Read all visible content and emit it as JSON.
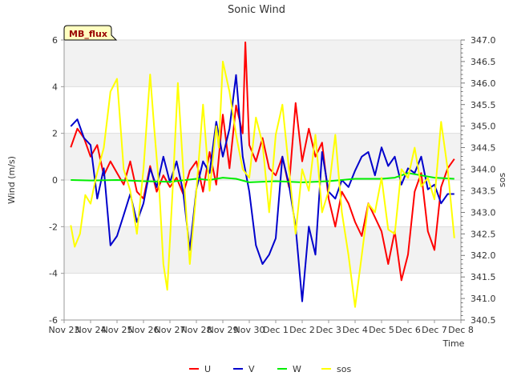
{
  "chart_data": {
    "type": "line",
    "title": "Sonic Wind",
    "badge": "MB_flux",
    "xlabel": "Time",
    "ylabel": "Wind (m/s)",
    "y2label": "sos",
    "xlim": [
      0,
      15
    ],
    "ylim": [
      -6,
      6
    ],
    "y2lim": [
      340.5,
      347.0
    ],
    "x_ticks": [
      {
        "value": 0,
        "label": "Nov 23"
      },
      {
        "value": 1,
        "label": "Nov 24"
      },
      {
        "value": 2,
        "label": "Nov 25"
      },
      {
        "value": 3,
        "label": "Nov 26"
      },
      {
        "value": 4,
        "label": "Nov 27"
      },
      {
        "value": 5,
        "label": "Nov 28"
      },
      {
        "value": 6,
        "label": "Nov 29"
      },
      {
        "value": 7,
        "label": "Nov 30"
      },
      {
        "value": 8,
        "label": "Dec 1"
      },
      {
        "value": 9,
        "label": "Dec 2"
      },
      {
        "value": 10,
        "label": "Dec 3"
      },
      {
        "value": 11,
        "label": "Dec 4"
      },
      {
        "value": 12,
        "label": "Dec 5"
      },
      {
        "value": 13,
        "label": "Dec 6"
      },
      {
        "value": 14,
        "label": "Dec 7"
      },
      {
        "value": 15,
        "label": "Dec 8"
      }
    ],
    "y_ticks": [
      -6,
      -4,
      -2,
      0,
      2,
      4,
      6
    ],
    "y2_ticks": [
      "340.5",
      "341.0",
      "341.5",
      "342.0",
      "342.5",
      "343.0",
      "343.5",
      "344.0",
      "344.5",
      "345.0",
      "345.5",
      "346.0",
      "346.5",
      "347.0"
    ],
    "legend": [
      "U",
      "V",
      "W",
      "sos"
    ],
    "series": [
      {
        "name": "U",
        "color": "#ff0000",
        "axis": "left",
        "x": [
          0.25,
          0.5,
          0.75,
          1.0,
          1.25,
          1.5,
          1.75,
          2.0,
          2.25,
          2.5,
          2.75,
          3.0,
          3.25,
          3.5,
          3.75,
          4.0,
          4.25,
          4.5,
          4.75,
          5.0,
          5.25,
          5.5,
          5.75,
          6.0,
          6.25,
          6.5,
          6.75,
          6.85,
          7.0,
          7.25,
          7.5,
          7.75,
          8.0,
          8.25,
          8.5,
          8.75,
          9.0,
          9.25,
          9.5,
          9.75,
          10.0,
          10.25,
          10.5,
          10.75,
          11.0,
          11.25,
          11.5,
          11.75,
          12.0,
          12.25,
          12.5,
          12.75,
          13.0,
          13.25,
          13.5,
          13.75,
          14.0,
          14.25,
          14.5,
          14.75
        ],
        "values": [
          1.4,
          2.2,
          1.8,
          1.0,
          1.5,
          0.2,
          0.8,
          0.3,
          -0.2,
          0.8,
          -0.5,
          -0.8,
          0.6,
          -0.5,
          0.2,
          -0.3,
          0.1,
          -0.6,
          0.4,
          0.8,
          -0.5,
          1.2,
          -0.2,
          2.8,
          0.5,
          3.2,
          2.0,
          5.9,
          1.5,
          0.8,
          1.8,
          0.5,
          0.2,
          1.0,
          -0.3,
          3.3,
          0.8,
          2.2,
          1.0,
          1.6,
          -0.8,
          -2.0,
          -0.5,
          -1.0,
          -1.8,
          -2.4,
          -1.0,
          -1.6,
          -2.2,
          -3.6,
          -2.2,
          -4.3,
          -3.2,
          -0.5,
          0.3,
          -2.2,
          -3.0,
          -0.3,
          0.5,
          0.9
        ]
      },
      {
        "name": "V",
        "color": "#0000cc",
        "axis": "left",
        "x": [
          0.25,
          0.5,
          0.75,
          1.0,
          1.25,
          1.5,
          1.75,
          2.0,
          2.25,
          2.5,
          2.75,
          3.0,
          3.25,
          3.5,
          3.75,
          4.0,
          4.25,
          4.5,
          4.75,
          5.0,
          5.25,
          5.5,
          5.75,
          6.0,
          6.25,
          6.5,
          6.75,
          7.0,
          7.25,
          7.5,
          7.75,
          8.0,
          8.25,
          8.5,
          8.75,
          9.0,
          9.25,
          9.5,
          9.75,
          10.0,
          10.25,
          10.5,
          10.75,
          11.0,
          11.25,
          11.5,
          11.75,
          12.0,
          12.25,
          12.5,
          12.75,
          13.0,
          13.25,
          13.5,
          13.75,
          14.0,
          14.25,
          14.5,
          14.75
        ],
        "values": [
          2.3,
          2.6,
          1.8,
          1.5,
          -0.8,
          0.5,
          -2.8,
          -2.4,
          -1.5,
          -0.6,
          -1.8,
          -1.0,
          0.5,
          -0.3,
          1.0,
          -0.1,
          0.8,
          -0.5,
          -3.0,
          -0.4,
          0.8,
          0.3,
          2.5,
          1.0,
          2.2,
          4.5,
          1.0,
          -0.5,
          -2.8,
          -3.6,
          -3.2,
          -2.5,
          1.0,
          -0.2,
          -2.0,
          -5.2,
          -2.0,
          -3.2,
          1.2,
          -0.5,
          -0.8,
          0.0,
          -0.3,
          0.4,
          1.0,
          1.2,
          0.2,
          1.4,
          0.6,
          1.0,
          -0.2,
          0.5,
          0.3,
          1.0,
          -0.4,
          -0.2,
          -1.0,
          -0.6,
          -0.6
        ]
      },
      {
        "name": "W",
        "color": "#00ee00",
        "axis": "left",
        "x": [
          0.25,
          1.0,
          2.0,
          3.0,
          4.0,
          5.0,
          5.5,
          6.0,
          6.5,
          7.0,
          8.0,
          9.0,
          10.0,
          11.0,
          12.0,
          12.5,
          13.0,
          13.5,
          14.0,
          14.75
        ],
        "values": [
          0.0,
          -0.02,
          0.0,
          -0.05,
          -0.08,
          0.05,
          0.0,
          0.1,
          0.05,
          -0.1,
          -0.05,
          -0.1,
          -0.05,
          0.05,
          0.05,
          0.1,
          0.3,
          0.2,
          0.1,
          0.05
        ]
      },
      {
        "name": "sos",
        "color": "#ffff00",
        "axis": "right",
        "x": [
          0.25,
          0.4,
          0.6,
          0.8,
          1.0,
          1.2,
          1.5,
          1.75,
          2.0,
          2.25,
          2.5,
          2.75,
          3.0,
          3.25,
          3.4,
          3.6,
          3.75,
          3.9,
          4.1,
          4.3,
          4.5,
          4.75,
          5.0,
          5.25,
          5.5,
          5.75,
          5.85,
          6.0,
          6.25,
          6.5,
          6.75,
          7.0,
          7.25,
          7.5,
          7.75,
          8.0,
          8.25,
          8.5,
          8.75,
          9.0,
          9.25,
          9.5,
          9.75,
          10.0,
          10.25,
          10.5,
          10.75,
          11.0,
          11.25,
          11.5,
          11.75,
          12.0,
          12.25,
          12.5,
          12.75,
          13.0,
          13.25,
          13.5,
          13.75,
          14.0,
          14.25,
          14.5,
          14.75
        ],
        "values": [
          342.7,
          342.2,
          342.5,
          343.4,
          343.2,
          343.8,
          344.5,
          345.8,
          346.1,
          344.0,
          343.5,
          342.5,
          344.0,
          346.2,
          345.0,
          343.5,
          341.8,
          341.2,
          343.5,
          346.0,
          344.0,
          341.8,
          343.5,
          345.5,
          343.5,
          345.0,
          344.5,
          346.5,
          345.8,
          344.8,
          344.0,
          343.8,
          345.2,
          344.6,
          343.0,
          344.8,
          345.5,
          344.0,
          342.5,
          344.0,
          343.5,
          344.8,
          343.0,
          343.5,
          344.8,
          343.0,
          342.0,
          340.8,
          342.0,
          343.2,
          343.0,
          343.8,
          342.6,
          342.5,
          344.0,
          343.8,
          344.5,
          343.6,
          343.8,
          343.3,
          345.1,
          344.0,
          342.4
        ]
      }
    ]
  }
}
